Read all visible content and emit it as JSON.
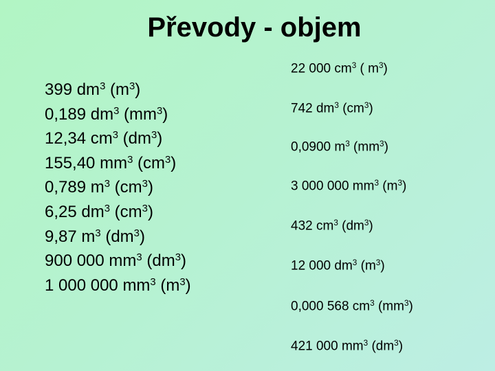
{
  "header": {
    "title": "Převody - objem"
  },
  "left": [
    [
      "399 dm",
      "3",
      " (m",
      "3",
      ")"
    ],
    [
      "0,189 dm",
      "3",
      " (mm",
      "3",
      ")"
    ],
    [
      "12,34 cm",
      "3",
      " (dm",
      "3",
      ")"
    ],
    [
      "155,40 mm",
      "3",
      " (cm",
      "3",
      ")"
    ],
    [
      "0,789 m",
      "3",
      " (cm",
      "3",
      ")"
    ],
    [
      "6,25 dm",
      "3",
      " (cm",
      "3",
      ")"
    ],
    [
      "9,87 m",
      "3",
      " (dm",
      "3",
      ")"
    ],
    [
      "900 000 mm",
      "3",
      " (dm",
      "3",
      ")"
    ],
    [
      "1 000 000 mm",
      "3",
      " (m",
      "3",
      ")"
    ]
  ],
  "right": [
    [
      "22 000 cm",
      "3",
      " ( m",
      "3",
      ")"
    ],
    [
      "742 dm",
      "3",
      " (cm",
      "3",
      ")"
    ],
    [
      "0,0900 m",
      "3",
      " (mm",
      "3",
      ")"
    ],
    [
      "3 000 000 mm",
      "3",
      " (m",
      "3",
      ")"
    ],
    [
      "432 cm",
      "3",
      " (dm",
      "3",
      ")"
    ],
    [
      "12 000 dm",
      "3",
      " (m",
      "3",
      ")"
    ],
    [
      "0,000 568 cm",
      "3",
      " (mm",
      "3",
      ")"
    ],
    [
      "421 000 mm",
      "3",
      " (dm",
      "3",
      ")"
    ]
  ]
}
